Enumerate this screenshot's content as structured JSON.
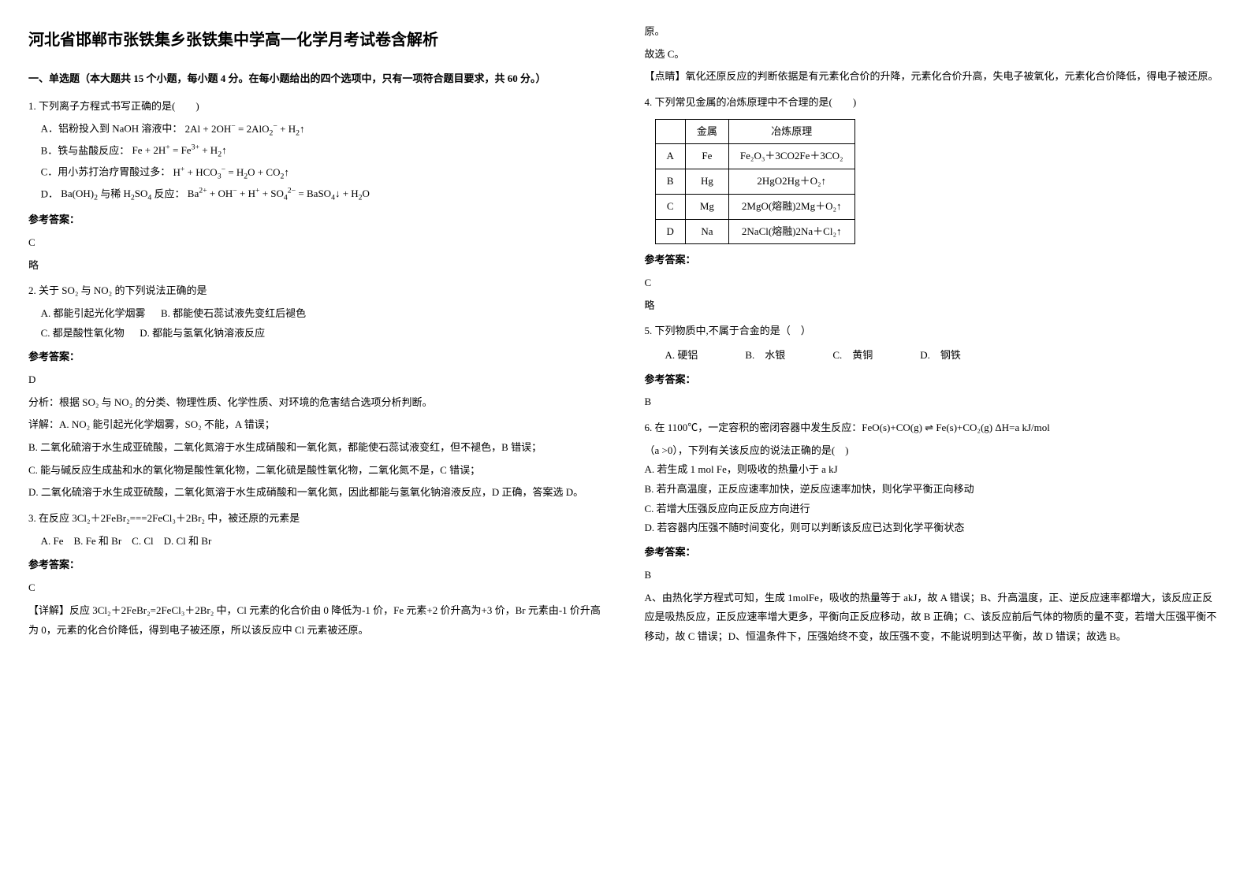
{
  "title": "河北省邯郸市张铁集乡张铁集中学高一化学月考试卷含解析",
  "section1_heading": "一、单选题（本大题共 15 个小题，每小题 4 分。在每小题给出的四个选项中，只有一项符合题目要求，共 60 分。）",
  "labels": {
    "answer": "参考答案：",
    "brief": "略",
    "analysis_label": "分析：",
    "detail_label": "详解：",
    "detail_label2": "【详解】",
    "tip_label": "【点睛】"
  },
  "q1": {
    "stem": "1. 下列离子方程式书写正确的是(　　)",
    "optA_prefix": "A．铝粉投入到 NaOH 溶液中：",
    "optB_prefix": "B．铁与盐酸反应：",
    "optC_prefix": "C．用小苏打治疗胃酸过多：",
    "optD_prefix": "D．",
    "optD_mid": " 与稀 ",
    "optD_mid2": " 反应：",
    "answer": "C"
  },
  "q2": {
    "stem": "2. 关于 SO₂ 与 NO₂ 的下列说法正确的是",
    "optA": "A. 都能引起光化学烟雾",
    "optB": "B. 都能使石蕊试液先变红后褪色",
    "optC": "C. 都是酸性氧化物",
    "optD": "D. 都能与氢氧化钠溶液反应",
    "answer": "D",
    "analysis": "根据 SO₂ 与 NO₂ 的分类、物理性质、化学性质、对环境的危害结合选项分析判断。",
    "detailA": "A. NO₂ 能引起光化学烟雾，SO₂ 不能，A 错误；",
    "detailB": "B. 二氧化硫溶于水生成亚硫酸，二氧化氮溶于水生成硝酸和一氧化氮，都能使石蕊试液变红，但不褪色，B 错误；",
    "detailC": "C. 能与碱反应生成盐和水的氧化物是酸性氧化物，二氧化硫是酸性氧化物，二氧化氮不是，C 错误；",
    "detailD": "D. 二氧化硫溶于水生成亚硫酸，二氧化氮溶于水生成硝酸和一氧化氮，因此都能与氢氧化钠溶液反应，D 正确，答案选 D。"
  },
  "q3": {
    "stem": "3. 在反应 3Cl₂＋2FeBr₂===2FeCl₃＋2Br₂ 中，被还原的元素是",
    "opts": "A. Fe　B. Fe 和 Br　C. Cl　D. Cl 和 Br",
    "answer": "C",
    "detail": "反应 3Cl₂＋2FeBr₂=2FeCl₃＋2Br₂ 中，Cl 元素的化合价由 0 降低为-1 价，Fe 元素+2 价升高为+3 价，Br 元素由-1 价升高为 0，元素的化合价降低，得到电子被还原，所以该反应中 Cl 元素被还原。",
    "detail_tail": "故选 C。",
    "tip": "氧化还原反应的判断依据是有元素化合价的升降，元素化合价升高，失电子被氧化，元素化合价降低，得电子被还原。"
  },
  "q4": {
    "stem": "4. 下列常见金属的冶炼原理中不合理的是(　　)",
    "th1": "金属",
    "th2": "冶炼原理",
    "rows": [
      {
        "k": "A",
        "m": "Fe",
        "p": "Fe₂O₃＋3CO2Fe＋3CO₂"
      },
      {
        "k": "B",
        "m": "Hg",
        "p": "2HgO2Hg＋O₂↑"
      },
      {
        "k": "C",
        "m": "Mg",
        "p": "2MgO(熔融)2Mg＋O₂↑"
      },
      {
        "k": "D",
        "m": "Na",
        "p": "2NaCl(熔融)2Na＋Cl₂↑"
      }
    ],
    "answer": "C"
  },
  "q5": {
    "stem": "5. 下列物质中,不属于合金的是（　）",
    "optA": "A. 硬铝",
    "optB": "B.　水银",
    "optC": "C.　黄铜",
    "optD": "D.　钢铁",
    "answer": "B"
  },
  "q6": {
    "stem1": "6. 在 1100℃，一定容积的密闭容器中发生反应：FeO(s)+CO(g) ⇌ Fe(s)+CO₂(g)  ΔH=a kJ/mol",
    "stem2": "（a >0），下列有关该反应的说法正确的是(　)",
    "optA": "A. 若生成 1 mol Fe，则吸收的热量小于 a kJ",
    "optB": "B. 若升高温度，正反应速率加快，逆反应速率加快，则化学平衡正向移动",
    "optC": "C. 若增大压强反应向正反应方向进行",
    "optD": "D. 若容器内压强不随时间变化，则可以判断该反应已达到化学平衡状态",
    "answer": "B",
    "detail": "A、由热化学方程式可知，生成 1molFe，吸收的热量等于 akJ，故 A 错误；B、升高温度，正、逆反应速率都增大，该反应正反应是吸热反应，正反应速率增大更多，平衡向正反应移动，故 B 正确；C、该反应前后气体的物质的量不变，若增大压强平衡不移动，故 C 错误；D、恒温条件下，压强始终不变，故压强不变，不能说明到达平衡，故 D 错误；故选 B。"
  }
}
